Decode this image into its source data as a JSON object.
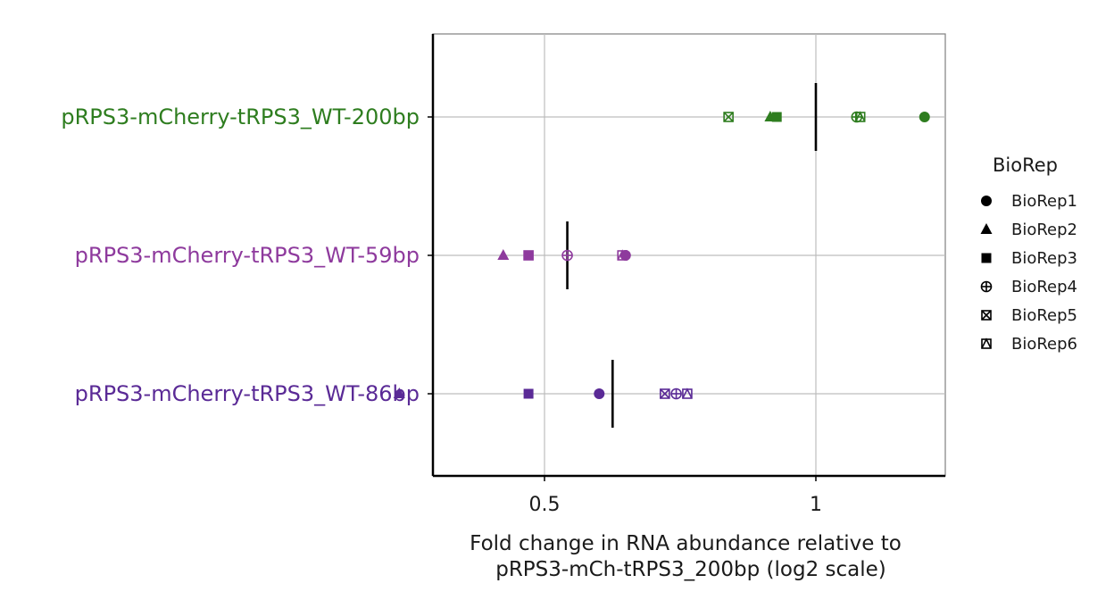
{
  "chart_data": {
    "type": "scatter",
    "x_scale": "log2",
    "x_ticks": [
      0.5,
      1
    ],
    "x_tick_labels": [
      "0.5",
      "1"
    ],
    "xlim": [
      0.34,
      1.52
    ],
    "xlabel_lines": [
      "Fold change in RNA abundance relative to",
      "pRPS3-mCh-tRPS3_200bp (log2 scale)"
    ],
    "ylabel": "",
    "grid": true,
    "legend_title": "BioRep",
    "legend_position": "right",
    "categories": [
      {
        "label": "pRPS3-mCherry-tRPS3_WT-200bp",
        "color": "#2e7d1f",
        "mean": 1.0
      },
      {
        "label": "pRPS3-mCherry-tRPS3_WT-59bp",
        "color": "#8e3a9d",
        "mean": 0.53
      },
      {
        "label": "pRPS3-mCherry-tRPS3_WT-86bp",
        "color": "#5a2a96",
        "mean": 0.595
      }
    ],
    "series": [
      {
        "name": "BioRep1",
        "shape": "circle",
        "values": [
          1.32,
          0.615,
          0.575
        ]
      },
      {
        "name": "BioRep2",
        "shape": "triangle",
        "values": [
          0.89,
          0.45,
          0.345
        ]
      },
      {
        "name": "BioRep3",
        "shape": "square",
        "values": [
          0.905,
          0.48,
          0.48
        ]
      },
      {
        "name": "BioRep4",
        "shape": "circle-plus",
        "values": [
          1.11,
          0.53,
          0.7
        ]
      },
      {
        "name": "BioRep5",
        "shape": "square-x",
        "values": [
          0.8,
          0.48,
          0.68
        ]
      },
      {
        "name": "BioRep6",
        "shape": "triangle-square",
        "values": [
          1.12,
          0.61,
          0.72
        ]
      }
    ]
  }
}
